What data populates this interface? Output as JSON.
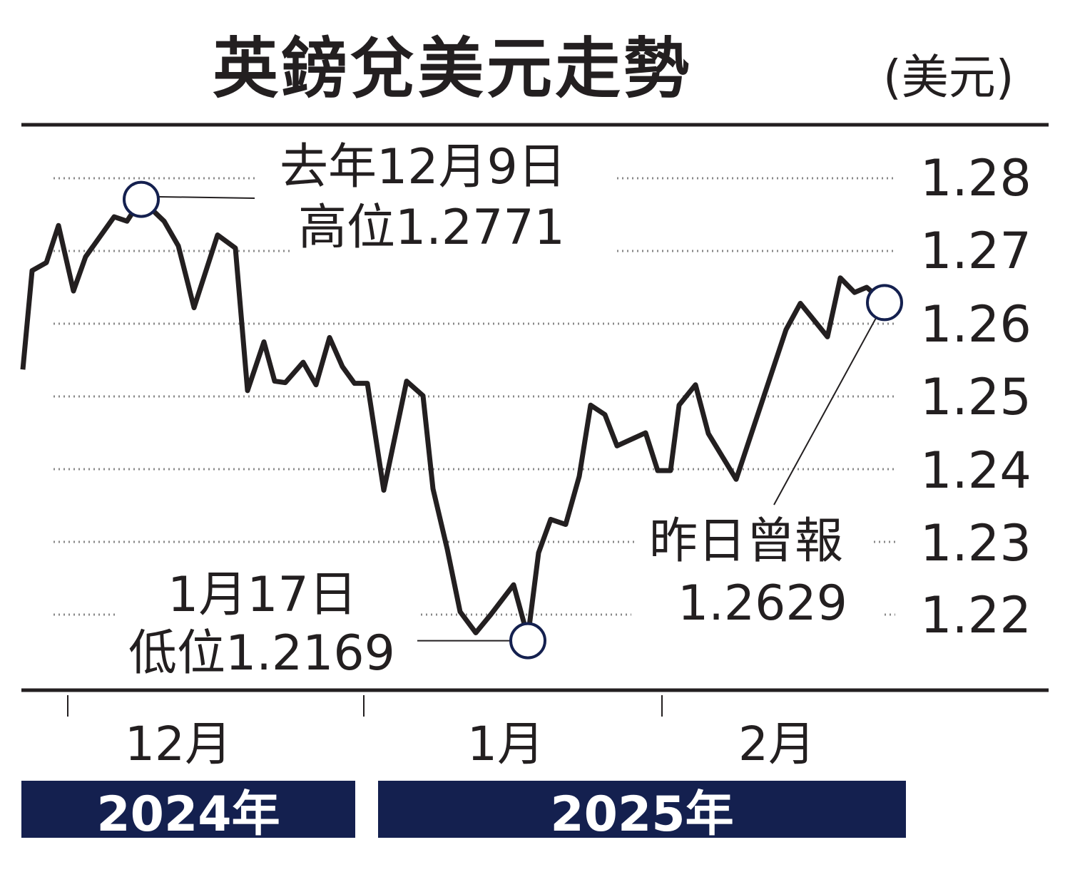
{
  "chart_data": {
    "type": "line",
    "title": "英鎊兌美元走勢",
    "unit": "(美元)",
    "ylim": [
      1.215,
      1.285
    ],
    "yticks": [
      "1.28",
      "1.27",
      "1.26",
      "1.25",
      "1.24",
      "1.23",
      "1.22"
    ],
    "xticks": [
      "12月",
      "1月",
      "2月"
    ],
    "years": [
      "2024年",
      "2025年"
    ],
    "grid": "dotted horizontal",
    "line_color": "#231f20",
    "marker_color": "#14204f",
    "series": [
      {
        "values": [
          1.2537,
          1.2673,
          1.2684,
          1.2735,
          1.2645,
          1.2692,
          1.2747,
          1.2741,
          1.2771,
          1.2741,
          1.2707,
          1.2622,
          1.2722,
          1.2704,
          1.2508,
          1.2575,
          1.2521,
          1.2519,
          1.2547,
          1.2516,
          1.2581,
          1.2541,
          1.2518,
          1.2518,
          1.2371,
          1.2521,
          1.2501,
          1.2373,
          1.229,
          1.2204,
          1.2175,
          1.22,
          1.2241,
          1.2169,
          1.2285,
          1.2331,
          1.2324,
          1.239,
          1.2488,
          1.2475,
          1.2432,
          1.245,
          1.2398,
          1.2398,
          1.2488,
          1.2516,
          1.2449,
          1.2386,
          1.2592,
          1.2628,
          1.2582,
          1.2663,
          1.2643,
          1.265,
          1.2629
        ]
      }
    ],
    "annotations": {
      "high": {
        "line1": "去年12月9日",
        "line2": "高位1.2771",
        "value": 1.2771
      },
      "low": {
        "line1": "1月17日",
        "line2": "低位1.2169",
        "value": 1.2169
      },
      "last": {
        "line1": "昨日曾報",
        "line2": "1.2629",
        "value": 1.2629
      }
    }
  }
}
